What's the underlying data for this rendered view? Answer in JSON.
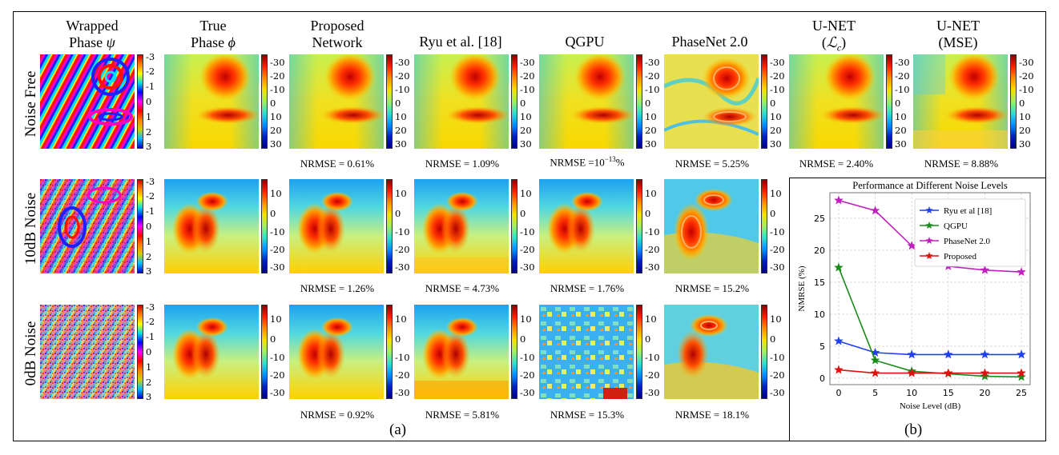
{
  "columns": [
    {
      "line1": "Wrapped",
      "line2": "Phase ψ"
    },
    {
      "line1": "True",
      "line2": "Phase ϕ"
    },
    {
      "line1": "Proposed",
      "line2": "Network"
    },
    {
      "line1": "Ryu et al. [18]",
      "line2": ""
    },
    {
      "line1": "QGPU",
      "line2": ""
    },
    {
      "line1": "PhaseNet 2.0",
      "line2": ""
    },
    {
      "line1": "U-NET",
      "line2": "(ℒc)"
    },
    {
      "line1": "U-NET",
      "line2": "(MSE)"
    }
  ],
  "rows": [
    "Noise Free",
    "10dB Noise",
    "0dB Noise"
  ],
  "colorbar_ticks": {
    "wrapped": [
      "-3",
      "-2",
      "-1",
      "0",
      "1",
      "2",
      "3"
    ],
    "noise_free": [
      "-30",
      "-20",
      "-10",
      "0",
      "10",
      "20",
      "30"
    ],
    "noisy": [
      "10",
      "0",
      "-10",
      "-20",
      "-30"
    ]
  },
  "metrics": {
    "noise_free": [
      "NRMSE = 0.61%",
      "NRMSE = 1.09%",
      "NRMSE =10",
      "NRMSE = 5.25%",
      "NRMSE = 2.40%",
      "NRMSE = 8.88%"
    ],
    "qgpu_exponent": "−13",
    "qgpu_suffix": "%",
    "noise_10": [
      "NRMSE = 1.26%",
      "NRMSE = 4.73%",
      "NRMSE = 1.76%",
      "NRMSE = 15.2%"
    ],
    "noise_0": [
      "NRMSE = 0.92%",
      "NRMSE = 5.81%",
      "NRMSE = 15.3%",
      "NRMSE = 18.1%"
    ]
  },
  "captions": {
    "a": "(a)",
    "b": "(b)"
  },
  "chart_data": {
    "type": "line",
    "title": "Performance at Different Noise Levels",
    "xlabel": "Noise Level (dB)",
    "ylabel": "NMRSE (%)",
    "x": [
      0,
      5,
      10,
      15,
      20,
      25
    ],
    "xlim": [
      -1.2,
      26.2
    ],
    "ylim": [
      -1,
      29
    ],
    "yticks": [
      0,
      5,
      10,
      15,
      20,
      25
    ],
    "grid": true,
    "legend": "top-right",
    "series": [
      {
        "name": "Ryu et al [18]",
        "color": "#1f3ff0",
        "values": [
          5.8,
          4.0,
          3.7,
          3.7,
          3.7,
          3.7
        ]
      },
      {
        "name": "QGPU",
        "color": "#1a8a1a",
        "values": [
          17.3,
          2.8,
          1.1,
          0.7,
          0.3,
          0.2
        ]
      },
      {
        "name": "PhaseNet 2.0",
        "color": "#c020c0",
        "values": [
          27.8,
          26.2,
          20.7,
          17.5,
          16.9,
          16.6
        ]
      },
      {
        "name": "Proposed",
        "color": "#e01010",
        "values": [
          1.3,
          0.8,
          0.8,
          0.8,
          0.8,
          0.8
        ]
      }
    ]
  }
}
